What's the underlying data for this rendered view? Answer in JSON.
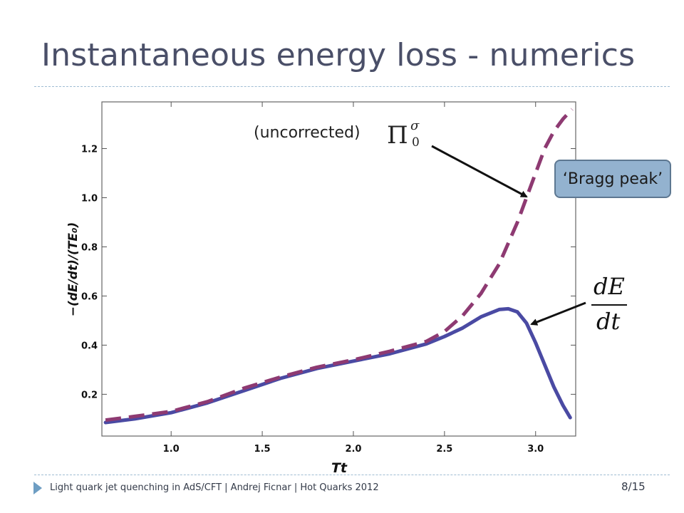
{
  "slide": {
    "title": "Instantaneous energy loss - numerics",
    "footer": "Light quark jet quenching in AdS/CFT  |  Andrej Ficnar  |  Hot Quarks 2012",
    "page": "8/15"
  },
  "annotations": {
    "uncorrected_label": "(uncorrected)",
    "pi_symbol": "Π",
    "pi_superscript": "σ",
    "pi_subscript": "0",
    "bragg_label": "‘Bragg peak’",
    "frac_numerator": "dE",
    "frac_denominator": "dt"
  },
  "chart_data": {
    "type": "line",
    "xlabel": "Tt",
    "ylabel": "−(dE/dt)/(TE₀)",
    "xlim": [
      0.62,
      3.22
    ],
    "ylim": [
      0.03,
      1.39
    ],
    "xticks": [
      1.0,
      1.5,
      2.0,
      2.5,
      3.0
    ],
    "xtick_labels": [
      "1.0",
      "1.5",
      "2.0",
      "2.5",
      "3.0"
    ],
    "yticks": [
      0.2,
      0.4,
      0.6,
      0.8,
      1.0,
      1.2
    ],
    "ytick_labels": [
      "0.2",
      "0.4",
      "0.6",
      "0.8",
      "1.0",
      "1.2"
    ],
    "grid": false,
    "series": [
      {
        "color": "#4a4aa3",
        "style": "solid",
        "x": [
          0.64,
          0.8,
          1.0,
          1.2,
          1.4,
          1.6,
          1.8,
          2.0,
          2.2,
          2.4,
          2.5,
          2.6,
          2.7,
          2.8,
          2.85,
          2.9,
          2.95,
          3.0,
          3.05,
          3.1,
          3.15,
          3.19
        ],
        "y": [
          0.085,
          0.1,
          0.125,
          0.165,
          0.215,
          0.265,
          0.305,
          0.335,
          0.365,
          0.405,
          0.435,
          0.47,
          0.515,
          0.545,
          0.548,
          0.535,
          0.49,
          0.41,
          0.32,
          0.23,
          0.155,
          0.105
        ]
      },
      {
        "color": "#8e3a72",
        "style": "dashed",
        "x": [
          0.64,
          0.8,
          1.0,
          1.2,
          1.4,
          1.6,
          1.8,
          2.0,
          2.2,
          2.4,
          2.5,
          2.6,
          2.7,
          2.8,
          2.9,
          2.95,
          3.0,
          3.05,
          3.1,
          3.15,
          3.2
        ],
        "y": [
          0.095,
          0.11,
          0.13,
          0.17,
          0.225,
          0.27,
          0.31,
          0.34,
          0.375,
          0.415,
          0.455,
          0.52,
          0.61,
          0.73,
          0.9,
          1.0,
          1.1,
          1.2,
          1.27,
          1.32,
          1.36
        ]
      }
    ]
  }
}
